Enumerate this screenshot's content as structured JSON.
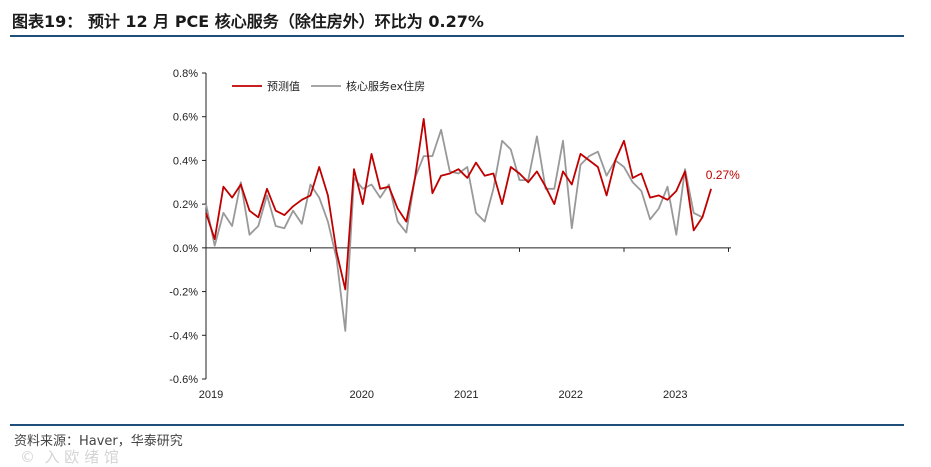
{
  "title": "图表19： 预计 12 月 PCE 核心服务（除住房外）环比为 0.27%",
  "source": "资料来源：Haver，华泰研究",
  "watermark": "©  入 欧 绪 馆",
  "colors": {
    "forecast": "#c00000",
    "actual": "#999999",
    "rule": "#1f4e79"
  },
  "chart_data": {
    "type": "line",
    "ylim": [
      -0.6,
      0.8
    ],
    "yticks": [
      -0.6,
      -0.4,
      -0.2,
      0.0,
      0.2,
      0.4,
      0.6,
      0.8
    ],
    "ytick_labels": [
      "-0.6%",
      "-0.4%",
      "-0.2%",
      "0.0%",
      "0.2%",
      "0.4%",
      "0.6%",
      "0.8%"
    ],
    "x_start": "2019-01",
    "x_labels": [
      "2019",
      "2020",
      "2021",
      "2022",
      "2023"
    ],
    "legend": "top-left",
    "annotation": {
      "text": "0.27%",
      "month": "2023-12",
      "value": 0.27
    },
    "series": [
      {
        "name": "预测值",
        "values": [
          0.16,
          0.04,
          0.28,
          0.23,
          0.29,
          0.17,
          0.14,
          0.27,
          0.17,
          0.15,
          0.19,
          0.22,
          0.24,
          0.37,
          0.24,
          -0.02,
          -0.19,
          0.36,
          0.2,
          0.43,
          0.27,
          0.28,
          0.18,
          0.12,
          0.32,
          0.59,
          0.25,
          0.33,
          0.34,
          0.36,
          0.32,
          0.39,
          0.33,
          0.34,
          0.2,
          0.37,
          0.34,
          0.3,
          0.35,
          0.28,
          0.2,
          0.35,
          0.29,
          0.43,
          0.4,
          0.37,
          0.24,
          0.4,
          0.49,
          0.32,
          0.34,
          0.23,
          0.24,
          0.22,
          0.26,
          0.35,
          0.08,
          0.14,
          0.27
        ]
      },
      {
        "name": "核心服务ex住房",
        "values": [
          0.2,
          0.01,
          0.16,
          0.1,
          0.3,
          0.06,
          0.1,
          0.24,
          0.1,
          0.09,
          0.17,
          0.11,
          0.29,
          0.23,
          0.12,
          -0.05,
          -0.38,
          0.32,
          0.27,
          0.29,
          0.23,
          0.29,
          0.12,
          0.07,
          0.32,
          0.42,
          0.42,
          0.54,
          0.35,
          0.34,
          0.37,
          0.16,
          0.12,
          0.27,
          0.49,
          0.45,
          0.31,
          0.31,
          0.51,
          0.27,
          0.27,
          0.49,
          0.09,
          0.38,
          0.42,
          0.44,
          0.33,
          0.4,
          0.37,
          0.3,
          0.26,
          0.13,
          0.18,
          0.28,
          0.06,
          0.36,
          0.16,
          0.14
        ]
      }
    ]
  }
}
